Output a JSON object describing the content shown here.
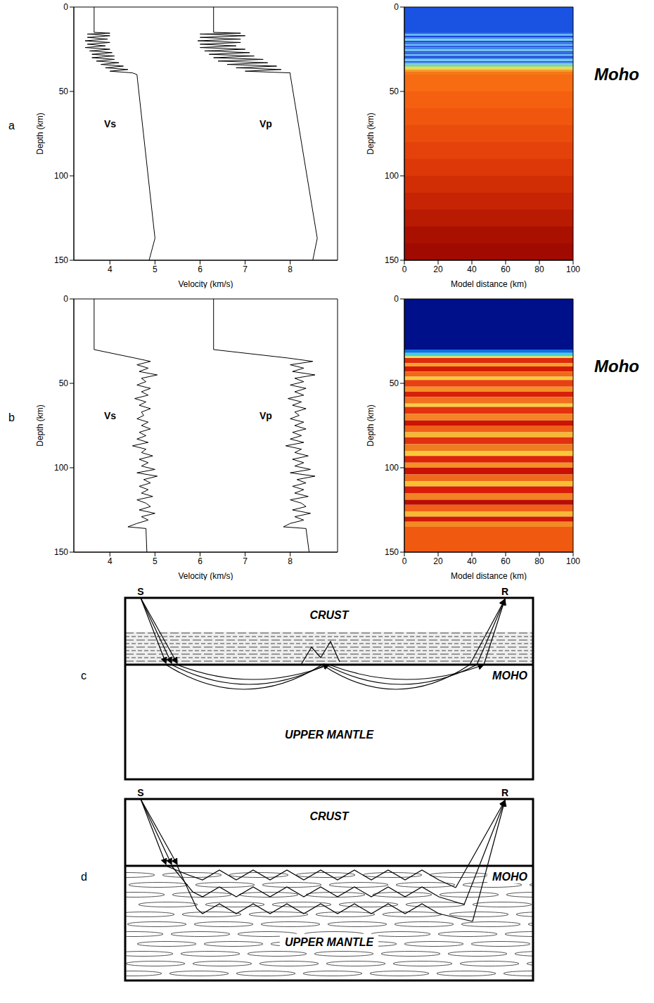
{
  "chart_data": [
    {
      "panel": "a",
      "type": "line",
      "xlabel": "Velocity (km/s)",
      "ylabel": "Depth (km)",
      "xlim": [
        3.2,
        9.05
      ],
      "xticks": [
        4,
        5,
        6,
        7,
        8
      ],
      "ylim": [
        0,
        150
      ],
      "yticks": [
        0,
        50,
        100,
        150
      ],
      "series": [
        {
          "name": "Vs",
          "color": "#000000",
          "x": [
            3.65,
            3.65,
            4.0,
            3.5,
            4.0,
            3.5,
            3.95,
            3.45,
            4.0,
            3.5,
            3.9,
            3.45,
            4.0,
            3.55,
            4.05,
            3.6,
            4.1,
            3.6,
            4.1,
            3.7,
            4.2,
            3.8,
            4.3,
            3.9,
            4.4,
            4.0,
            4.5,
            4.6,
            5.0,
            4.87
          ],
          "y": [
            0,
            15,
            15.5,
            16,
            17,
            18,
            19,
            20,
            21,
            22,
            23,
            24,
            25,
            26,
            27,
            28,
            29,
            30,
            31,
            32,
            33,
            34,
            35,
            36,
            37,
            38,
            39,
            40,
            137,
            150
          ]
        },
        {
          "name": "Vp",
          "color": "#000000",
          "x": [
            6.3,
            6.3,
            6.9,
            6.0,
            7.0,
            6.0,
            6.9,
            5.95,
            6.9,
            6.0,
            6.8,
            6.0,
            7.0,
            6.1,
            7.1,
            6.2,
            7.2,
            6.3,
            7.4,
            6.4,
            7.5,
            6.6,
            7.7,
            6.8,
            7.8,
            7.0,
            8.0,
            8.0,
            8.6,
            8.5
          ],
          "y": [
            0,
            15,
            15.5,
            16,
            17,
            18,
            19,
            20,
            21,
            22,
            23,
            24,
            25,
            26,
            27,
            28,
            29,
            30,
            31,
            32,
            33,
            34,
            35,
            36,
            37,
            38,
            39,
            40,
            137,
            150
          ]
        }
      ]
    },
    {
      "panel": "a",
      "type": "image",
      "xlabel": "Model distance (km)",
      "ylabel": "Depth (km)",
      "xlim": [
        0,
        100
      ],
      "xticks": [
        0,
        20,
        40,
        60,
        80,
        100
      ],
      "ylim": [
        0,
        150
      ],
      "yticks": [
        0,
        50,
        100,
        150
      ],
      "annotation": "Moho",
      "layers": [
        {
          "from": 0,
          "to": 15,
          "color": "#1a52e2"
        },
        {
          "from": 15,
          "to": 16,
          "color": "#2a64e6"
        },
        {
          "from": 16,
          "to": 17,
          "color": "#5cb8f0"
        },
        {
          "from": 17,
          "to": 18,
          "color": "#1846d8"
        },
        {
          "from": 18,
          "to": 19,
          "color": "#3c8ae8"
        },
        {
          "from": 19,
          "to": 20,
          "color": "#78d0f0"
        },
        {
          "from": 20,
          "to": 21,
          "color": "#2050dc"
        },
        {
          "from": 21,
          "to": 22,
          "color": "#2a64e6"
        },
        {
          "from": 22,
          "to": 23,
          "color": "#5cb8f0"
        },
        {
          "from": 23,
          "to": 24,
          "color": "#1846d8"
        },
        {
          "from": 24,
          "to": 25,
          "color": "#3c8ae8"
        },
        {
          "from": 25,
          "to": 26,
          "color": "#78d0f0"
        },
        {
          "from": 26,
          "to": 27,
          "color": "#2050dc"
        },
        {
          "from": 27,
          "to": 28,
          "color": "#2a64e6"
        },
        {
          "from": 28,
          "to": 29,
          "color": "#5cb8f0"
        },
        {
          "from": 29,
          "to": 30,
          "color": "#1846d8"
        },
        {
          "from": 30,
          "to": 31,
          "color": "#3c8ae8"
        },
        {
          "from": 31,
          "to": 32,
          "color": "#78d0f0"
        },
        {
          "from": 32,
          "to": 33,
          "color": "#2a64e6"
        },
        {
          "from": 33,
          "to": 34,
          "color": "#5cb8f0"
        },
        {
          "from": 34,
          "to": 35,
          "color": "#70d0c0"
        },
        {
          "from": 35,
          "to": 36,
          "color": "#b0e080"
        },
        {
          "from": 36,
          "to": 37,
          "color": "#e8d848"
        },
        {
          "from": 37,
          "to": 38,
          "color": "#f4a030"
        },
        {
          "from": 38,
          "to": 40,
          "color": "#f47818"
        },
        {
          "from": 40,
          "to": 50,
          "color": "#f76b12"
        },
        {
          "from": 50,
          "to": 60,
          "color": "#f46010"
        },
        {
          "from": 60,
          "to": 70,
          "color": "#f0560e"
        },
        {
          "from": 70,
          "to": 80,
          "color": "#ea4c0c"
        },
        {
          "from": 80,
          "to": 90,
          "color": "#e4420a"
        },
        {
          "from": 90,
          "to": 100,
          "color": "#dc3808"
        },
        {
          "from": 100,
          "to": 110,
          "color": "#d22e06"
        },
        {
          "from": 110,
          "to": 120,
          "color": "#c62404"
        },
        {
          "from": 120,
          "to": 130,
          "color": "#b81a02"
        },
        {
          "from": 130,
          "to": 140,
          "color": "#aa1000"
        },
        {
          "from": 140,
          "to": 150,
          "color": "#a00a00"
        }
      ]
    },
    {
      "panel": "b",
      "type": "line",
      "xlabel": "Velocity (km/s)",
      "ylabel": "Depth (km)",
      "xlim": [
        3.2,
        9.05
      ],
      "xticks": [
        4,
        5,
        6,
        7,
        8
      ],
      "ylim": [
        0,
        150
      ],
      "yticks": [
        0,
        50,
        100,
        150
      ],
      "series": [
        {
          "name": "Vs",
          "color": "#000000",
          "x": [
            3.65,
            3.65,
            4.55,
            4.9,
            4.6,
            4.85,
            4.65,
            5.05,
            4.7,
            4.8,
            4.6,
            4.9,
            4.7,
            4.85,
            4.55,
            4.8,
            4.65,
            4.9,
            4.7,
            4.75,
            4.6,
            4.85,
            4.7,
            4.9,
            4.65,
            4.8,
            4.6,
            4.85,
            4.5,
            4.8,
            4.7,
            4.95,
            4.65,
            4.85,
            4.7,
            5.0,
            4.6,
            5.05,
            4.75,
            4.9,
            4.65,
            4.85,
            4.7,
            4.95,
            4.6,
            4.8,
            4.9,
            4.65,
            5.0,
            4.7,
            4.85,
            4.6,
            4.4,
            4.8,
            4.82
          ],
          "y": [
            0,
            30,
            35,
            37,
            39,
            41,
            43,
            45,
            47,
            49,
            51,
            53,
            55,
            57,
            59,
            61,
            63,
            65,
            67,
            69,
            71,
            73,
            75,
            77,
            79,
            81,
            83,
            85,
            87,
            89,
            91,
            93,
            95,
            97,
            99,
            101,
            103,
            105,
            107,
            109,
            111,
            113,
            115,
            117,
            119,
            121,
            123,
            125,
            127,
            129,
            131,
            133,
            135,
            136,
            150
          ]
        },
        {
          "name": "Vp",
          "color": "#000000",
          "x": [
            6.3,
            6.3,
            7.95,
            8.5,
            8.0,
            8.3,
            8.05,
            8.55,
            8.1,
            8.3,
            8.0,
            8.35,
            8.1,
            8.3,
            7.95,
            8.25,
            8.05,
            8.35,
            8.1,
            8.2,
            8.0,
            8.3,
            8.1,
            8.35,
            8.05,
            8.25,
            8.0,
            8.3,
            7.9,
            8.25,
            8.1,
            8.4,
            8.05,
            8.3,
            8.1,
            8.45,
            8.0,
            8.55,
            8.15,
            8.35,
            8.05,
            8.3,
            8.1,
            8.4,
            8.0,
            8.25,
            8.35,
            8.05,
            8.45,
            8.1,
            8.3,
            8.0,
            7.85,
            8.35,
            8.42
          ],
          "y": [
            0,
            30,
            35,
            37,
            39,
            41,
            43,
            45,
            47,
            49,
            51,
            53,
            55,
            57,
            59,
            61,
            63,
            65,
            67,
            69,
            71,
            73,
            75,
            77,
            79,
            81,
            83,
            85,
            87,
            89,
            91,
            93,
            95,
            97,
            99,
            101,
            103,
            105,
            107,
            109,
            111,
            113,
            115,
            117,
            119,
            121,
            123,
            125,
            127,
            129,
            131,
            133,
            135,
            136,
            150
          ]
        }
      ]
    },
    {
      "panel": "b",
      "type": "image",
      "xlabel": "Model distance (km)",
      "ylabel": "Depth (km)",
      "xlim": [
        0,
        100
      ],
      "xticks": [
        0,
        20,
        40,
        60,
        80,
        100
      ],
      "ylim": [
        0,
        150
      ],
      "yticks": [
        0,
        50,
        100,
        150
      ],
      "annotation": "Moho",
      "layers": [
        {
          "from": 0,
          "to": 30,
          "color": "#00108a"
        },
        {
          "from": 30,
          "to": 32,
          "color": "#1070e0"
        },
        {
          "from": 32,
          "to": 34,
          "color": "#40d0e0"
        },
        {
          "from": 34,
          "to": 35,
          "color": "#f0e040"
        },
        {
          "from": 35,
          "to": 38,
          "color": "#e02a0c"
        },
        {
          "from": 38,
          "to": 40,
          "color": "#f7a030"
        },
        {
          "from": 40,
          "to": 43,
          "color": "#d41a06"
        },
        {
          "from": 43,
          "to": 46,
          "color": "#f06818"
        },
        {
          "from": 46,
          "to": 48,
          "color": "#f8c838"
        },
        {
          "from": 48,
          "to": 52,
          "color": "#e84010"
        },
        {
          "from": 52,
          "to": 55,
          "color": "#f59028"
        },
        {
          "from": 55,
          "to": 58,
          "color": "#d82008"
        },
        {
          "from": 58,
          "to": 62,
          "color": "#f27020"
        },
        {
          "from": 62,
          "to": 64,
          "color": "#f8d040"
        },
        {
          "from": 64,
          "to": 68,
          "color": "#e43210"
        },
        {
          "from": 68,
          "to": 72,
          "color": "#f48424"
        },
        {
          "from": 72,
          "to": 75,
          "color": "#cc1404"
        },
        {
          "from": 75,
          "to": 79,
          "color": "#f06018"
        },
        {
          "from": 79,
          "to": 82,
          "color": "#f8b830"
        },
        {
          "from": 82,
          "to": 86,
          "color": "#e03010"
        },
        {
          "from": 86,
          "to": 90,
          "color": "#f07c20"
        },
        {
          "from": 90,
          "to": 93,
          "color": "#f8c838"
        },
        {
          "from": 93,
          "to": 97,
          "color": "#dc2408"
        },
        {
          "from": 97,
          "to": 100,
          "color": "#f49028"
        },
        {
          "from": 100,
          "to": 104,
          "color": "#c81004"
        },
        {
          "from": 104,
          "to": 108,
          "color": "#f06a1c"
        },
        {
          "from": 108,
          "to": 111,
          "color": "#f8c030"
        },
        {
          "from": 111,
          "to": 115,
          "color": "#d81c08"
        },
        {
          "from": 115,
          "to": 119,
          "color": "#f28224"
        },
        {
          "from": 119,
          "to": 122,
          "color": "#b80c02"
        },
        {
          "from": 122,
          "to": 126,
          "color": "#f06018"
        },
        {
          "from": 126,
          "to": 129,
          "color": "#f8b830"
        },
        {
          "from": 129,
          "to": 132,
          "color": "#d01806"
        },
        {
          "from": 132,
          "to": 135,
          "color": "#f48a26"
        },
        {
          "from": 135,
          "to": 150,
          "color": "#f05a10"
        }
      ]
    }
  ],
  "diagrams": [
    {
      "panel": "c",
      "kind": "laminated crust",
      "source": "S",
      "receiver": "R",
      "top": "CRUST",
      "interface": "MOHO",
      "bottom": "UPPER MANTLE"
    },
    {
      "panel": "d",
      "kind": "heterogeneous mantle",
      "source": "S",
      "receiver": "R",
      "top": "CRUST",
      "interface": "MOHO",
      "bottom": "UPPER MANTLE"
    }
  ]
}
